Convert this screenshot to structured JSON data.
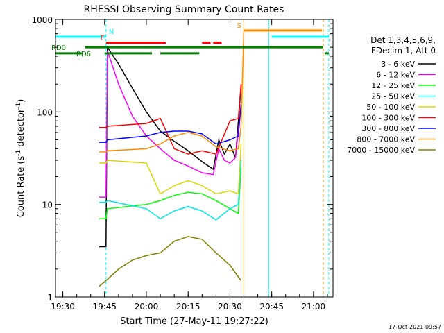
{
  "chart_data": {
    "type": "line",
    "title": "RHESSI Observing Summary Count Rates",
    "xlabel": "Start Time (27-May-11 19:27:22)",
    "ylabel_main": "Count Rate (s",
    "ylabel_sup1": "-1",
    "ylabel_mid": " detector",
    "ylabel_sup2": "-1",
    "ylabel_end": ")",
    "yscale": "log",
    "xlim": [
      "19:27:22",
      "21:07:00"
    ],
    "ylim": [
      1,
      1000
    ],
    "x_ticks": [
      "19:30",
      "19:45",
      "20:00",
      "20:15",
      "20:30",
      "20:45",
      "21:00"
    ],
    "y_ticks": [
      "1000",
      "100",
      "10",
      "1"
    ],
    "legend_header": [
      "Det 1,3,4,5,6,9,",
      "FDecim 1, Att 0"
    ],
    "legend_placement": "right",
    "footer_stamp": "17-Oct-2021 09:57",
    "series": [
      {
        "name": "3 - 6 keV",
        "color": "#000000",
        "x": [
          "19:43:00",
          "19:45:30",
          "19:46:00",
          "19:50:00",
          "19:55:00",
          "20:00:00",
          "20:05:00",
          "20:10:00",
          "20:15:00",
          "20:20:00",
          "20:24:00",
          "20:26:00",
          "20:28:00",
          "20:30:00",
          "20:32:00",
          "20:34:00"
        ],
        "y": [
          3.5,
          3.5,
          500,
          330,
          180,
          100,
          62,
          48,
          38,
          29,
          24,
          50,
          35,
          45,
          32,
          190
        ]
      },
      {
        "name": "6 - 12 keV",
        "color": "#ff00ff",
        "x": [
          "19:43:00",
          "19:45:30",
          "19:46:00",
          "19:50:00",
          "19:55:00",
          "20:00:00",
          "20:05:00",
          "20:10:00",
          "20:15:00",
          "20:20:00",
          "20:24:00",
          "20:26:00",
          "20:28:00",
          "20:30:00",
          "20:32:00",
          "20:34:00"
        ],
        "y": [
          12,
          12,
          460,
          200,
          90,
          55,
          40,
          30,
          26,
          22,
          21,
          40,
          30,
          28,
          32,
          120
        ]
      },
      {
        "name": "12 - 25 keV",
        "color": "#00ff00",
        "x": [
          "19:43:00",
          "19:45:30",
          "19:46:00",
          "20:00:00",
          "20:05:00",
          "20:10:00",
          "20:15:00",
          "20:20:00",
          "20:25:00",
          "20:30:00",
          "20:33:00",
          "20:34:00"
        ],
        "y": [
          7,
          7,
          9,
          10,
          11,
          12.5,
          13.5,
          13,
          11,
          9,
          8,
          25
        ]
      },
      {
        "name": "25 - 50 keV",
        "color": "#00e8e8",
        "x": [
          "19:43:00",
          "19:45:30",
          "19:46:00",
          "20:00:00",
          "20:05:00",
          "20:10:00",
          "20:15:00",
          "20:20:00",
          "20:25:00",
          "20:30:00",
          "20:33:00",
          "20:34:00"
        ],
        "y": [
          10.5,
          10.5,
          11,
          9,
          7,
          8.5,
          9.5,
          8.5,
          6.8,
          9,
          10,
          30
        ]
      },
      {
        "name": "50 - 100 keV",
        "color": "#d8d800",
        "x": [
          "19:43:00",
          "19:45:30",
          "19:46:00",
          "20:00:00",
          "20:05:00",
          "20:10:00",
          "20:15:00",
          "20:20:00",
          "20:25:00",
          "20:30:00",
          "20:33:00",
          "20:34:00"
        ],
        "y": [
          28,
          28,
          30,
          28,
          13,
          16,
          18,
          16,
          13,
          14,
          13,
          45
        ]
      },
      {
        "name": "100 - 300 keV",
        "color": "#ff0000",
        "x": [
          "19:43:00",
          "19:45:30",
          "19:46:00",
          "20:00:00",
          "20:05:00",
          "20:10:00",
          "20:15:00",
          "20:20:00",
          "20:25:00",
          "20:30:00",
          "20:33:00",
          "20:34:00"
        ],
        "y": [
          68,
          68,
          70,
          75,
          85,
          40,
          35,
          38,
          35,
          80,
          85,
          200
        ]
      },
      {
        "name": "300 - 800 keV",
        "color": "#0000ff",
        "x": [
          "19:43:00",
          "19:45:30",
          "19:46:00",
          "20:00:00",
          "20:05:00",
          "20:10:00",
          "20:15:00",
          "20:20:00",
          "20:25:00",
          "20:30:00",
          "20:33:00",
          "20:34:00"
        ],
        "y": [
          47,
          47,
          50,
          55,
          60,
          62,
          62,
          58,
          45,
          50,
          55,
          120
        ]
      },
      {
        "name": "800 - 7000 keV",
        "color": "#ff8c00",
        "x": [
          "19:43:00",
          "19:45:30",
          "19:46:00",
          "20:00:00",
          "20:05:00",
          "20:10:00",
          "20:15:00",
          "20:20:00",
          "20:25:00",
          "20:30:00",
          "20:33:00",
          "20:34:00",
          "20:35:00"
        ],
        "y": [
          37,
          37,
          38,
          40,
          45,
          55,
          60,
          55,
          42,
          38,
          40,
          70,
          760
        ]
      },
      {
        "name": "7000 - 15000 keV",
        "color": "#808000",
        "x": [
          "19:43:00",
          "19:45:30",
          "19:50:00",
          "19:55:00",
          "20:00:00",
          "20:05:00",
          "20:10:00",
          "20:15:00",
          "20:20:00",
          "20:25:00",
          "20:30:00",
          "20:34:00"
        ],
        "y": [
          1.3,
          1.5,
          2.0,
          2.5,
          2.8,
          3.0,
          4.0,
          4.5,
          4.2,
          3.0,
          2.2,
          1.5
        ]
      }
    ],
    "flag_bars": [
      {
        "label": "N",
        "color": "#00ffff",
        "level": 650,
        "segments": [
          [
            "19:27:22",
            "19:45:30"
          ],
          [
            "20:45:00",
            "21:05:30"
          ]
        ]
      },
      {
        "label": "F",
        "color": "#ff0000",
        "level": 560,
        "segments": [
          [
            "19:45:30",
            "20:07:00"
          ],
          [
            "20:20:00",
            "20:23:00"
          ],
          [
            "20:24:00",
            "20:27:00"
          ]
        ]
      },
      {
        "label": "S",
        "color": "#ff8c00",
        "level": 760,
        "segments": [
          [
            "20:35:00",
            "21:03:00"
          ]
        ]
      },
      {
        "label": "RD0",
        "color": "#008000",
        "level": 500,
        "segments": [
          [
            "19:38:00",
            "21:03:30"
          ]
        ]
      },
      {
        "label": "RD6",
        "color": "#008000",
        "level": 430,
        "segments": [
          [
            "19:27:22",
            "19:37:00"
          ],
          [
            "19:45:00",
            "20:02:00"
          ],
          [
            "20:05:00",
            "20:19:00"
          ],
          [
            "21:04:00",
            "21:05:30"
          ]
        ]
      }
    ],
    "markers": [
      {
        "x": "19:27:22",
        "color": "#00ffff",
        "dashed": false
      },
      {
        "x": "19:45:30",
        "color": "#00ffff",
        "dashed": true
      },
      {
        "x": "20:35:00",
        "color": "#ff8c00",
        "dashed": false
      },
      {
        "x": "20:44:00",
        "color": "#00ffff",
        "dashed": false
      },
      {
        "x": "21:03:30",
        "color": "#ff8c00",
        "dashed": true
      },
      {
        "x": "21:05:30",
        "color": "#00ffff",
        "dashed": true
      }
    ]
  }
}
